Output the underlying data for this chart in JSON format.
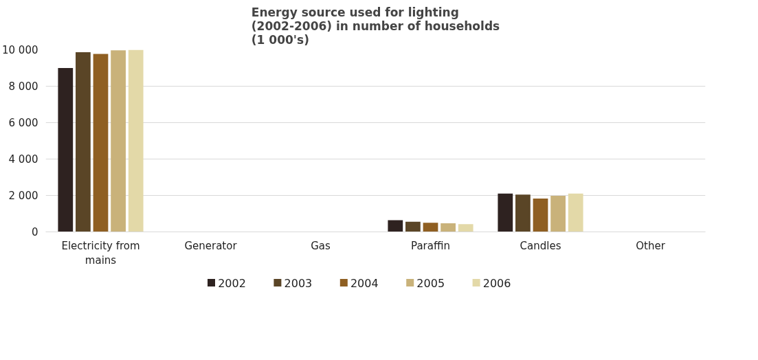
{
  "chart_data": {
    "type": "bar",
    "title": "Energy source used for lighting\n(2002-2006) in number of households\n(1 000's)",
    "categories": [
      "Electricity from mains",
      "Generator",
      "Gas",
      "Paraffin",
      "Candles",
      "Other"
    ],
    "series": [
      {
        "name": "2002",
        "color": "#2e2220",
        "values": [
          9000,
          0,
          0,
          640,
          2100,
          null
        ]
      },
      {
        "name": "2003",
        "color": "#5a4526",
        "values": [
          9870,
          0,
          0,
          560,
          2050,
          null
        ]
      },
      {
        "name": "2004",
        "color": "#8f5f22",
        "values": [
          9770,
          0,
          0,
          500,
          1830,
          null
        ]
      },
      {
        "name": "2005",
        "color": "#c9b27a",
        "values": [
          9970,
          0,
          0,
          470,
          1980,
          null
        ]
      },
      {
        "name": "2006",
        "color": "#e3d9a8",
        "values": [
          10000,
          0,
          0,
          420,
          2100,
          null
        ]
      }
    ],
    "ylim": [
      0,
      10000
    ],
    "yticks": [
      {
        "value": 0,
        "label": "0"
      },
      {
        "value": 2000,
        "label": "2 000"
      },
      {
        "value": 4000,
        "label": "4 000"
      },
      {
        "value": 6000,
        "label": "6 000"
      },
      {
        "value": 8000,
        "label": "8 000"
      },
      {
        "value": 10000,
        "label": "10 000"
      }
    ],
    "grid": "y",
    "legend": "bottom"
  }
}
